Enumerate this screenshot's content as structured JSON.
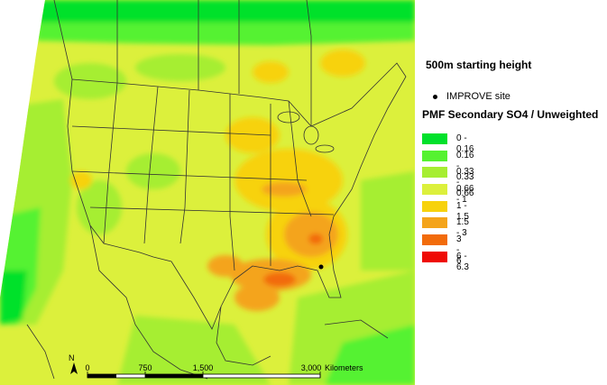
{
  "map": {
    "title": "500m starting height",
    "site_marker": {
      "label": "IMPROVE site",
      "icon": "dot-icon"
    },
    "legend": {
      "heading": "PMF Secondary SO4 / Unweighted",
      "classes": [
        {
          "label": "0 - 0.16",
          "color": "#00e12b"
        },
        {
          "label": "0.16 - 0.33",
          "color": "#55f230"
        },
        {
          "label": "0.33 - 0.66",
          "color": "#a6ee31"
        },
        {
          "label": "0.66 - 1",
          "color": "#dcf03c"
        },
        {
          "label": "1 - 1.5",
          "color": "#f7d20c"
        },
        {
          "label": "1.5 - 3",
          "color": "#f4a41b"
        },
        {
          "label": "3 - 6",
          "color": "#f26b0a"
        },
        {
          "label": "6 - 6.3",
          "color": "#ef0a05"
        }
      ]
    },
    "scale_bar": {
      "tick_labels": [
        "0",
        "750",
        "1,500",
        "3,000"
      ],
      "unit": "Kilometers"
    },
    "north_arrow": {
      "label": "N",
      "icon": "north-arrow-icon"
    }
  }
}
